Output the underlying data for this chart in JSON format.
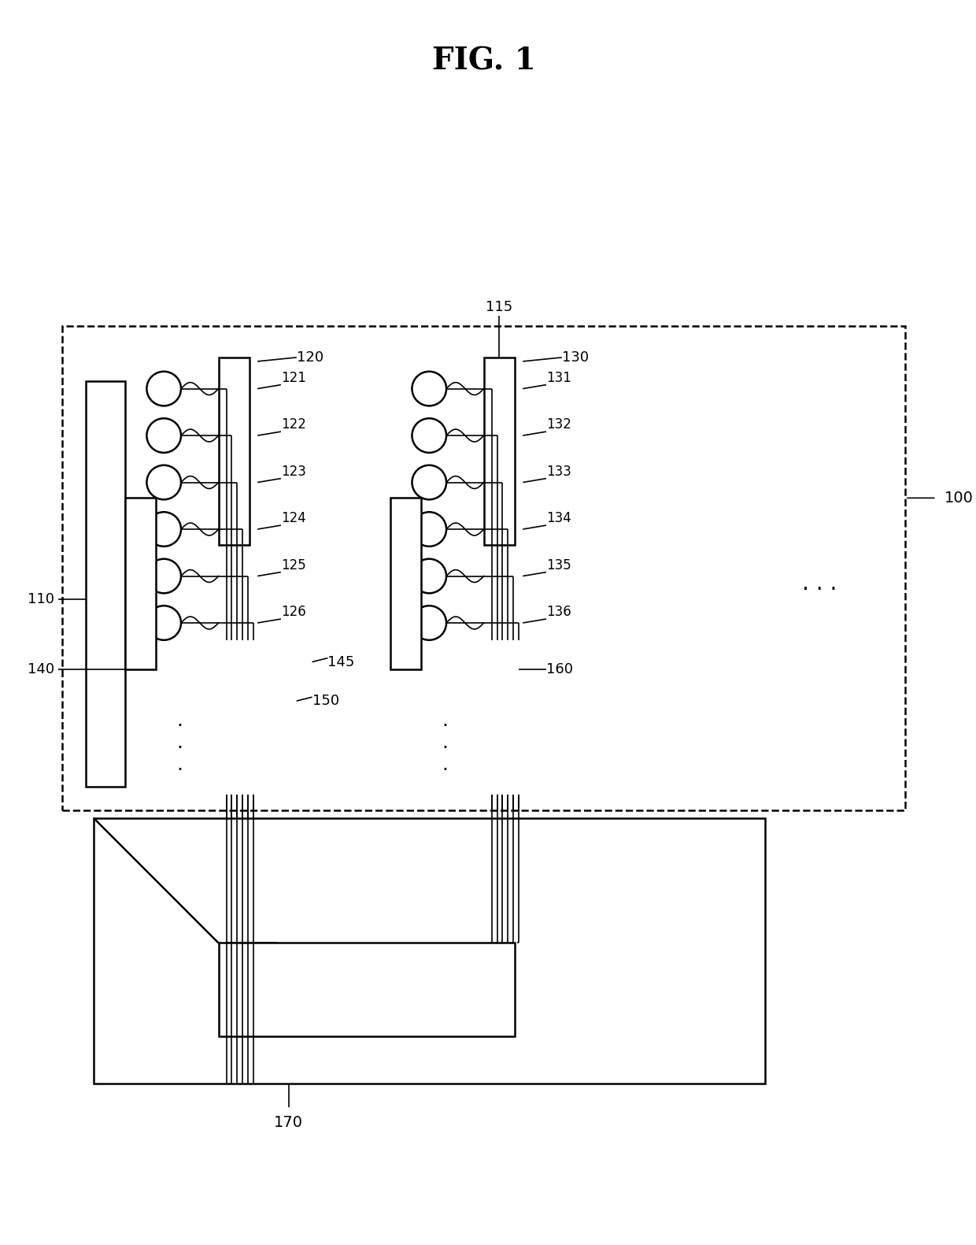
{
  "title": "FIG. 1",
  "bg_color": "#ffffff",
  "line_color": "#000000",
  "fig_width": 12.4,
  "fig_height": 15.81,
  "labels": {
    "fig_title": "FIG. 1",
    "100": "100",
    "110": "110",
    "115": "115",
    "120": "120",
    "121": "121",
    "122": "122",
    "123": "123",
    "124": "124",
    "125": "125",
    "126": "126",
    "130": "130",
    "131": "131",
    "132": "132",
    "133": "133",
    "134": "134",
    "135": "135",
    "136": "136",
    "140": "140",
    "145": "145",
    "150": "150",
    "160": "160",
    "170": "170"
  }
}
